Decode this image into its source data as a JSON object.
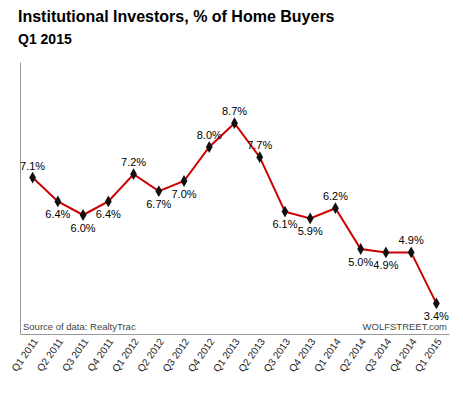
{
  "chart_data": {
    "type": "line",
    "title": "Institutional Investors, % of Home Buyers",
    "subtitle": "Q1 2015",
    "categories": [
      "Q1 2011",
      "Q2 2011",
      "Q3 2011",
      "Q4 2011",
      "Q1 2012",
      "Q2 2012",
      "Q3 2012",
      "Q4 2012",
      "Q1 2013",
      "Q2 2013",
      "Q3 2013",
      "Q4 2013",
      "Q1 2014",
      "Q2 2014",
      "Q3 2014",
      "Q4 2014",
      "Q1 2015"
    ],
    "values": [
      7.1,
      6.4,
      6.0,
      6.4,
      7.2,
      6.7,
      7.0,
      8.0,
      8.7,
      7.7,
      6.1,
      5.9,
      6.2,
      5.0,
      4.9,
      4.9,
      3.4
    ],
    "value_labels": [
      "7.1%",
      "6.4%",
      "6.0%",
      "6.4%",
      "7.2%",
      "6.7%",
      "7.0%",
      "8.0%",
      "8.7%",
      "7.7%",
      "6.1%",
      "5.9%",
      "6.2%",
      "5.0%",
      "4.9%",
      "4.9%",
      "3.4%"
    ],
    "data_labels": true,
    "color": "#cc0000",
    "marker": "diamond",
    "ylim": [
      2.5,
      10.5
    ],
    "yticks": [],
    "tick_labels": "x",
    "annotations": [
      "Source of data: RealtyTrac",
      "WOLFSTREET.com"
    ]
  }
}
